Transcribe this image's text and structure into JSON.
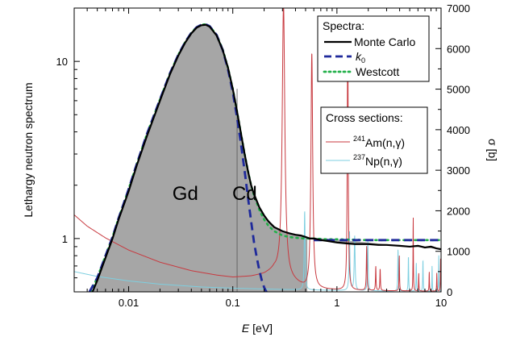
{
  "chart_data": {
    "type": "line",
    "title": "",
    "xlabel": {
      "italic": "E",
      "rest": " [eV]"
    },
    "ylabel_left": "Lethargy neutron spectrum",
    "ylabel_right": "σ [b]",
    "xscale": "log",
    "yscale_left": "log",
    "yscale_right": "linear",
    "xlim": [
      0.003,
      10
    ],
    "ylim_left": [
      0.5,
      20
    ],
    "ylim_right": [
      0,
      7000
    ],
    "x_ticks": [
      0.01,
      0.1,
      1,
      10
    ],
    "x_tick_labels": [
      "0.01",
      "0.1",
      "1",
      "10"
    ],
    "y_left_ticks": [
      1,
      10
    ],
    "y_left_tick_labels": [
      "1",
      "10"
    ],
    "y_right_ticks": [
      0,
      1000,
      2000,
      3000,
      4000,
      5000,
      6000,
      7000
    ],
    "y_right_tick_labels": [
      "0",
      "1000",
      "2000",
      "3000",
      "4000",
      "5000",
      "6000",
      "7000"
    ],
    "annotations": [
      {
        "text": "Gd",
        "x": 0.035,
        "y": 1.65
      },
      {
        "text": "Cd",
        "x": 0.13,
        "y": 1.65
      }
    ],
    "cd_cutoff_x": 0.11,
    "legend_spectra": {
      "title": "Spectra:",
      "entries": [
        {
          "label": "Monte Carlo",
          "color": "#000000",
          "dash": "solid"
        },
        {
          "label_main": "k",
          "label_sub": "0",
          "color": "#1f2a9b",
          "dash": "dashed"
        },
        {
          "label": "Westcott",
          "color": "#22b04a",
          "dash": "dotted"
        }
      ]
    },
    "legend_xs": {
      "title": "Cross sections:",
      "entries": [
        {
          "sup": "241",
          "label": "Am(n,γ)",
          "color": "#c8393f"
        },
        {
          "sup": "237",
          "label": "Np(n,γ)",
          "color": "#7ecfe0"
        }
      ]
    },
    "series": [
      {
        "name": "Monte Carlo",
        "axis": "left",
        "color": "#000000",
        "fill": "#a6a6a6",
        "x": [
          0.0045,
          0.005,
          0.006,
          0.007,
          0.008,
          0.01,
          0.012,
          0.015,
          0.02,
          0.025,
          0.03,
          0.035,
          0.04,
          0.045,
          0.05,
          0.055,
          0.06,
          0.07,
          0.08,
          0.09,
          0.1,
          0.11,
          0.12,
          0.13,
          0.14,
          0.15,
          0.16,
          0.18,
          0.2,
          0.22,
          0.25,
          0.3,
          0.35,
          0.4,
          0.45,
          0.5,
          0.55,
          0.6,
          0.7,
          0.8,
          1.0,
          1.2,
          1.5,
          2.0,
          2.5,
          3.0,
          4.0,
          5.0,
          6.0,
          7.0,
          8.0,
          9.0,
          10.0
        ],
        "y": [
          0.5,
          0.58,
          0.78,
          1.0,
          1.28,
          1.85,
          2.6,
          3.8,
          6.0,
          8.5,
          10.8,
          12.8,
          14.4,
          15.5,
          16.0,
          16.1,
          15.7,
          14.0,
          11.6,
          9.2,
          7.0,
          5.2,
          3.9,
          3.0,
          2.4,
          2.0,
          1.78,
          1.5,
          1.35,
          1.25,
          1.16,
          1.1,
          1.07,
          1.05,
          1.04,
          1.02,
          1.0,
          1.0,
          0.98,
          0.97,
          0.95,
          0.94,
          0.93,
          0.93,
          0.92,
          0.92,
          0.91,
          0.9,
          0.91,
          0.89,
          0.9,
          0.88,
          0.87
        ]
      },
      {
        "name": "k0",
        "axis": "left",
        "color": "#1f2a9b",
        "x": [
          0.0042,
          0.005,
          0.006,
          0.007,
          0.008,
          0.01,
          0.012,
          0.015,
          0.02,
          0.025,
          0.03,
          0.035,
          0.04,
          0.045,
          0.05,
          0.055,
          0.06,
          0.07,
          0.08,
          0.09,
          0.1,
          0.11,
          0.12,
          0.13,
          0.14,
          0.15,
          0.16,
          0.17,
          0.18,
          0.19,
          0.2,
          0.21,
          0.22
        ],
        "y": [
          0.5,
          0.6,
          0.8,
          1.02,
          1.3,
          1.9,
          2.65,
          3.9,
          6.1,
          8.6,
          10.9,
          12.9,
          14.5,
          15.6,
          16.1,
          16.2,
          15.8,
          14.1,
          11.6,
          9.0,
          6.7,
          4.8,
          3.4,
          2.4,
          1.7,
          1.25,
          0.95,
          0.78,
          0.66,
          0.58,
          0.53,
          0.5,
          0.5
        ]
      },
      {
        "name": "k0 epithermal",
        "axis": "left",
        "color": "#1f2a9b",
        "x": [
          0.6,
          10.0
        ],
        "y": [
          0.98,
          0.98
        ]
      },
      {
        "name": "Westcott",
        "axis": "left",
        "color": "#22b04a",
        "x": [
          0.0043,
          0.005,
          0.006,
          0.007,
          0.008,
          0.01,
          0.012,
          0.015,
          0.02,
          0.025,
          0.03,
          0.035,
          0.04,
          0.045,
          0.05,
          0.055,
          0.06,
          0.07,
          0.08,
          0.09,
          0.1,
          0.11,
          0.12,
          0.13,
          0.14,
          0.15,
          0.16,
          0.18,
          0.2,
          0.22,
          0.25,
          0.3,
          0.35,
          0.4,
          0.5,
          0.6,
          0.8,
          1.0,
          2.0,
          5.0,
          10.0
        ],
        "y": [
          0.5,
          0.6,
          0.8,
          1.02,
          1.3,
          1.9,
          2.65,
          3.9,
          6.1,
          8.6,
          10.9,
          12.9,
          14.5,
          15.6,
          16.1,
          16.2,
          15.8,
          14.1,
          11.7,
          9.2,
          7.0,
          5.2,
          3.9,
          3.0,
          2.4,
          2.0,
          1.75,
          1.45,
          1.28,
          1.18,
          1.1,
          1.04,
          1.02,
          1.01,
          1.0,
          1.0,
          0.99,
          0.99,
          0.98,
          0.98,
          0.98
        ]
      },
      {
        "name": "241Am(n,γ)",
        "axis": "right",
        "color": "#c8393f",
        "base": [
          [
            0.003,
            1900
          ],
          [
            0.004,
            1620
          ],
          [
            0.006,
            1330
          ],
          [
            0.01,
            1030
          ],
          [
            0.02,
            730
          ],
          [
            0.04,
            520
          ],
          [
            0.07,
            410
          ],
          [
            0.1,
            360
          ],
          [
            0.15,
            380
          ],
          [
            0.2,
            430
          ],
          [
            0.25,
            520
          ],
          [
            0.5,
            80
          ],
          [
            1.0,
            40
          ],
          [
            2.0,
            30
          ],
          [
            5.0,
            20
          ],
          [
            10.0,
            15
          ]
        ],
        "peaks": [
          {
            "x": 0.307,
            "height": 6700,
            "width": 0.06
          },
          {
            "x": 0.574,
            "height": 5800,
            "width": 0.04
          },
          {
            "x": 1.27,
            "height": 6800,
            "width": 0.02
          },
          {
            "x": 1.93,
            "height": 1100,
            "width": 0.015
          },
          {
            "x": 2.36,
            "height": 600,
            "width": 0.012
          },
          {
            "x": 2.6,
            "height": 550,
            "width": 0.012
          },
          {
            "x": 3.97,
            "height": 900,
            "width": 0.01
          },
          {
            "x": 5.4,
            "height": 1900,
            "width": 0.008
          },
          {
            "x": 6.1,
            "height": 450,
            "width": 0.008
          },
          {
            "x": 7.7,
            "height": 500,
            "width": 0.008
          },
          {
            "x": 9.1,
            "height": 450,
            "width": 0.008
          },
          {
            "x": 9.9,
            "height": 800,
            "width": 0.008
          }
        ]
      },
      {
        "name": "237Np(n,γ)",
        "axis": "right",
        "color": "#7ecfe0",
        "base": [
          [
            0.003,
            500
          ],
          [
            0.005,
            380
          ],
          [
            0.01,
            270
          ],
          [
            0.02,
            190
          ],
          [
            0.05,
            120
          ],
          [
            0.1,
            90
          ],
          [
            0.3,
            60
          ],
          [
            1.0,
            35
          ],
          [
            3.0,
            20
          ],
          [
            10.0,
            12
          ]
        ],
        "peaks": [
          {
            "x": 0.49,
            "height": 1950,
            "width": 0.02
          },
          {
            "x": 1.32,
            "height": 1450,
            "width": 0.02
          },
          {
            "x": 1.48,
            "height": 1350,
            "width": 0.02
          },
          {
            "x": 1.98,
            "height": 1250,
            "width": 0.015
          },
          {
            "x": 3.86,
            "height": 1050,
            "width": 0.012
          },
          {
            "x": 4.86,
            "height": 900,
            "width": 0.01
          },
          {
            "x": 5.78,
            "height": 700,
            "width": 0.01
          },
          {
            "x": 6.7,
            "height": 800,
            "width": 0.01
          },
          {
            "x": 8.2,
            "height": 650,
            "width": 0.008
          },
          {
            "x": 9.5,
            "height": 900,
            "width": 0.008
          }
        ]
      }
    ]
  }
}
